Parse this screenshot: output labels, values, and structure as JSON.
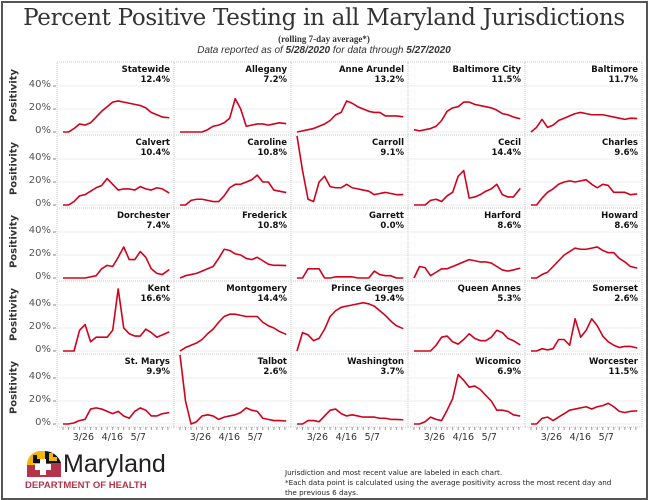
{
  "header": {
    "title": "Percent Positive Testing in all Maryland Jurisdictions",
    "subtitle": "(rolling 7-day average*)",
    "data_prefix": "Data reported as of ",
    "report_date": "5/28/2020",
    "data_mid": " for data through ",
    "through_date": "5/27/2020"
  },
  "footer": {
    "logo_text": "Maryland",
    "department": "DEPARTMENT OF HEALTH",
    "note1": "Jurisdiction and most recent value are labeled in each chart.",
    "note2": "*Each data point is calculated using the average positivity across the most recent day and the previous 6 days."
  },
  "colors": {
    "line": "#d0021b",
    "grid": "#ececec",
    "border": "#c8c8c8",
    "brand_red": "#b5334b",
    "brand_gold": "#f2b705"
  },
  "chart_data": {
    "type": "line",
    "layout": "small-multiples 5x5",
    "ylabel": "Positivity",
    "yticks": [
      "0%",
      "20%",
      "40%"
    ],
    "ytick_values": [
      0,
      20,
      40
    ],
    "ylim": [
      0,
      61
    ],
    "xticks": [
      "3/26",
      "4/16",
      "5/7"
    ],
    "x": [
      "3/11",
      "3/15",
      "3/19",
      "3/23",
      "3/27",
      "3/31",
      "4/4",
      "4/8",
      "4/12",
      "4/16",
      "4/20",
      "4/24",
      "4/28",
      "5/2",
      "5/6",
      "5/10",
      "5/14",
      "5/18",
      "5/22",
      "5/27"
    ],
    "series": [
      {
        "name": "Statewide",
        "latest": "12.4%",
        "values": [
          0,
          0,
          3,
          7,
          6,
          8,
          13,
          18,
          22,
          26,
          27,
          26,
          25,
          24,
          23,
          21,
          17,
          15,
          13,
          12.4
        ]
      },
      {
        "name": "Allegany",
        "latest": "7.2%",
        "values": [
          0,
          0,
          0,
          0,
          0,
          2,
          5,
          6,
          8,
          12,
          29,
          20,
          5,
          6,
          7,
          7,
          6,
          7,
          8,
          7.2
        ]
      },
      {
        "name": "Anne Arundel",
        "latest": "13.2%",
        "values": [
          0,
          1,
          2,
          3,
          5,
          7,
          10,
          15,
          17,
          27,
          25,
          22,
          20,
          18,
          17,
          17,
          14,
          14,
          14,
          13.2
        ]
      },
      {
        "name": "Baltimore City",
        "latest": "11.5%",
        "values": [
          2,
          1,
          2,
          3,
          5,
          10,
          18,
          21,
          22,
          26,
          26,
          24,
          23,
          22,
          21,
          19,
          16,
          15,
          13,
          11.5
        ]
      },
      {
        "name": "Baltimore",
        "latest": "11.7%",
        "values": [
          0,
          4,
          11,
          4,
          6,
          10,
          12,
          14,
          16,
          17,
          16,
          15,
          15,
          15,
          14,
          13,
          12,
          11,
          12,
          11.7
        ]
      },
      {
        "name": "Calvert",
        "latest": "10.4%",
        "values": [
          0,
          0,
          3,
          8,
          9,
          12,
          15,
          17,
          23,
          18,
          13,
          14,
          14,
          13,
          16,
          14,
          13,
          15,
          14,
          10.4
        ]
      },
      {
        "name": "Caroline",
        "latest": "10.8%",
        "values": [
          0,
          0,
          4,
          5,
          5,
          4,
          3,
          3,
          8,
          15,
          18,
          18,
          20,
          22,
          26,
          20,
          20,
          13,
          12,
          10.8
        ]
      },
      {
        "name": "Carroll",
        "latest": "9.1%",
        "values": [
          60,
          30,
          5,
          3,
          20,
          25,
          16,
          15,
          15,
          18,
          15,
          14,
          13,
          12,
          9,
          10,
          11,
          10,
          9,
          9.1
        ]
      },
      {
        "name": "Cecil",
        "latest": "14.4%",
        "values": [
          0,
          0,
          0,
          4,
          5,
          3,
          8,
          11,
          25,
          30,
          6,
          7,
          9,
          12,
          14,
          18,
          9,
          7,
          7,
          14.4
        ]
      },
      {
        "name": "Charles",
        "latest": "9.6%",
        "values": [
          0,
          0,
          6,
          11,
          14,
          18,
          20,
          21,
          20,
          21,
          22,
          18,
          15,
          18,
          17,
          11,
          11,
          11,
          9,
          9.6
        ]
      },
      {
        "name": "Dorchester",
        "latest": "7.4%",
        "values": [
          0,
          0,
          0,
          0,
          0,
          1,
          2,
          8,
          11,
          10,
          18,
          27,
          16,
          16,
          23,
          18,
          8,
          4,
          3,
          7.4
        ]
      },
      {
        "name": "Frederick",
        "latest": "10.8%",
        "values": [
          0,
          2,
          3,
          4,
          6,
          8,
          10,
          17,
          25,
          24,
          21,
          20,
          17,
          16,
          18,
          15,
          12,
          11,
          11,
          10.8
        ]
      },
      {
        "name": "Garrett",
        "latest": "0.0%",
        "values": [
          0,
          0,
          8,
          8,
          8,
          0,
          0,
          1,
          1,
          1,
          1,
          0,
          0,
          0,
          6,
          3,
          2,
          2,
          0,
          0
        ]
      },
      {
        "name": "Harford",
        "latest": "8.6%",
        "values": [
          0,
          10,
          9,
          2,
          5,
          8,
          8,
          10,
          12,
          14,
          16,
          15,
          14,
          14,
          13,
          10,
          7,
          6,
          7,
          8.6
        ]
      },
      {
        "name": "Howard",
        "latest": "8.6%",
        "values": [
          0,
          0,
          3,
          5,
          10,
          15,
          20,
          23,
          26,
          25,
          25,
          26,
          27,
          24,
          22,
          22,
          17,
          14,
          10,
          8.6
        ]
      },
      {
        "name": "Kent",
        "latest": "16.6%",
        "values": [
          0,
          0,
          0,
          18,
          23,
          8,
          12,
          12,
          12,
          18,
          54,
          20,
          15,
          13,
          13,
          19,
          16,
          12,
          14,
          16.6
        ]
      },
      {
        "name": "Montgomery",
        "latest": "14.4%",
        "values": [
          0,
          3,
          5,
          7,
          10,
          15,
          19,
          25,
          30,
          32,
          32,
          31,
          30,
          30,
          30,
          25,
          22,
          20,
          17,
          14.4
        ]
      },
      {
        "name": "Prince Georges",
        "latest": "19.4%",
        "values": [
          0,
          16,
          14,
          9,
          11,
          19,
          30,
          35,
          38,
          39,
          40,
          41,
          42,
          41,
          39,
          35,
          31,
          26,
          22,
          19.4
        ]
      },
      {
        "name": "Queen Annes",
        "latest": "5.3%",
        "values": [
          0,
          0,
          0,
          0,
          5,
          12,
          13,
          8,
          6,
          10,
          15,
          11,
          9,
          9,
          12,
          18,
          16,
          11,
          9,
          5.3
        ]
      },
      {
        "name": "Somerset",
        "latest": "2.6%",
        "values": [
          0,
          0,
          2,
          1,
          2,
          10,
          10,
          5,
          28,
          12,
          18,
          28,
          22,
          13,
          8,
          5,
          3,
          4,
          4,
          2.6
        ]
      },
      {
        "name": "St. Marys",
        "latest": "9.9%",
        "values": [
          0,
          0,
          1,
          3,
          4,
          13,
          14,
          13,
          11,
          9,
          11,
          7,
          5,
          11,
          14,
          12,
          7,
          7,
          9,
          9.9
        ]
      },
      {
        "name": "Talbot",
        "latest": "2.6%",
        "values": [
          60,
          20,
          0,
          2,
          7,
          8,
          7,
          4,
          6,
          7,
          8,
          10,
          14,
          12,
          11,
          5,
          4,
          3,
          3,
          2.6
        ]
      },
      {
        "name": "Washington",
        "latest": "3.7%",
        "values": [
          0,
          0,
          3,
          3,
          2,
          7,
          12,
          13,
          9,
          7,
          8,
          7,
          6,
          6,
          6,
          5,
          5,
          4,
          4,
          3.7
        ]
      },
      {
        "name": "Wicomico",
        "latest": "6.9%",
        "values": [
          0,
          0,
          2,
          6,
          4,
          3,
          12,
          22,
          43,
          38,
          32,
          33,
          30,
          25,
          20,
          12,
          12,
          11,
          8,
          6.9
        ]
      },
      {
        "name": "Worcester",
        "latest": "11.5%",
        "values": [
          0,
          0,
          5,
          6,
          3,
          6,
          9,
          12,
          13,
          14,
          15,
          13,
          15,
          16,
          18,
          15,
          11,
          10,
          11,
          11.5
        ]
      }
    ]
  }
}
